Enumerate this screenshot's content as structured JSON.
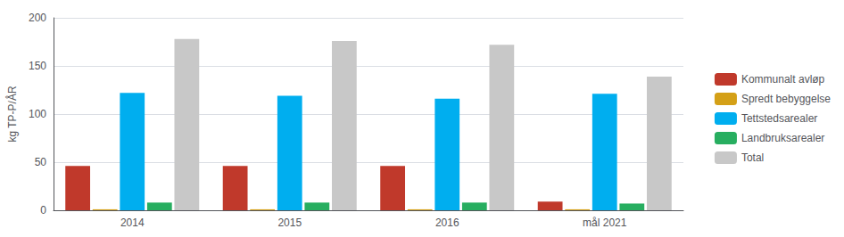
{
  "chart_data": {
    "type": "bar",
    "categories": [
      "2014",
      "2015",
      "2016",
      "mål 2021"
    ],
    "series": [
      {
        "name": "Kommunalt avløp",
        "color": "#C0392B",
        "values": [
          46,
          46,
          46,
          9
        ]
      },
      {
        "name": "Spredt bebyggelse",
        "color": "#D4A017",
        "values": [
          1,
          1,
          1,
          1
        ]
      },
      {
        "name": "Tettstedsarealer",
        "color": "#00AEEF",
        "values": [
          122,
          119,
          116,
          121
        ]
      },
      {
        "name": "Landbruksarealer",
        "color": "#27AE60",
        "values": [
          8,
          8,
          8,
          7
        ]
      },
      {
        "name": "Total",
        "color": "#C8C8C8",
        "values": [
          178,
          176,
          172,
          139
        ]
      }
    ],
    "ylabel": "kg TP-P/ÅR",
    "ylim": [
      0,
      200
    ],
    "yticks": [
      0,
      50,
      100,
      150,
      200
    ],
    "grid": true,
    "legend": "right"
  }
}
